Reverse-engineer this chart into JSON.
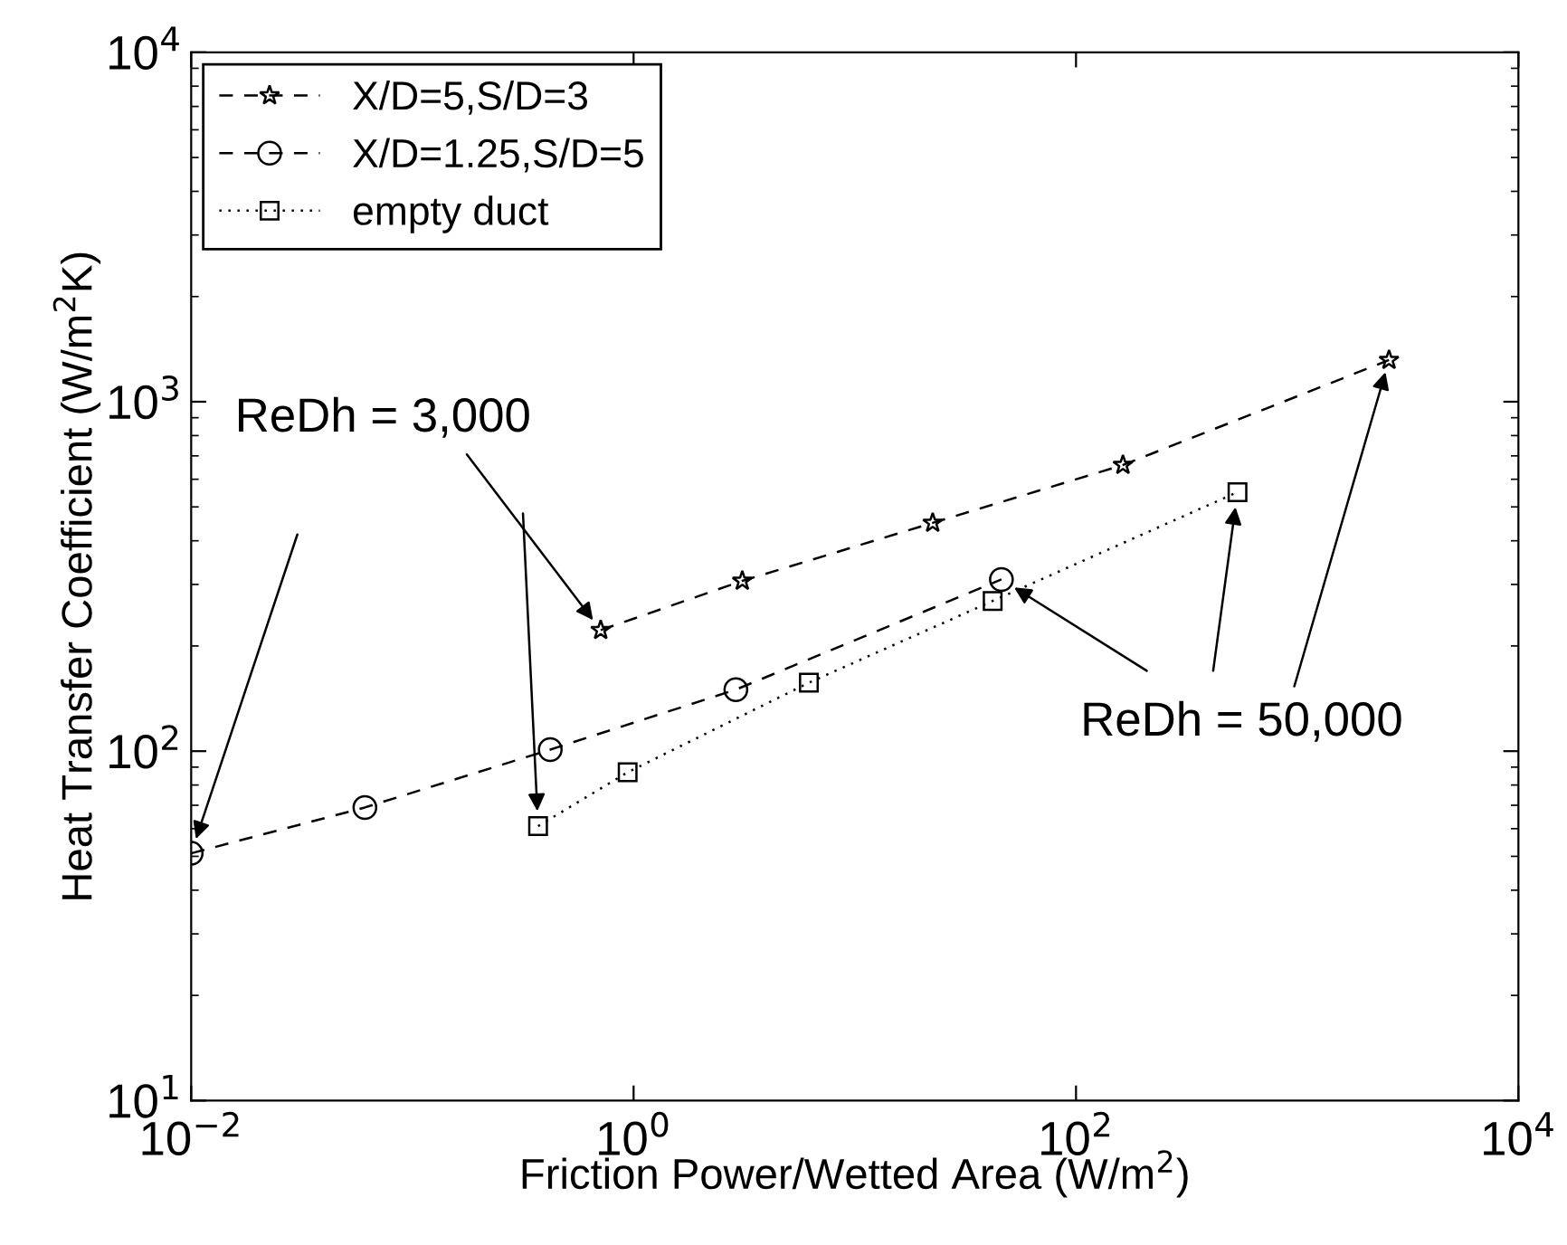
{
  "chart_data": {
    "type": "line",
    "xlabel": "Friction Power/Wetted Area (W/m$^{2}$)",
    "ylabel": "Heat Transfer Coefficient (W/m$^{2}$K)",
    "log": "xy",
    "grid": false,
    "legend": "top left",
    "xlim": [
      0.01,
      10000
    ],
    "ylim": [
      10,
      10000
    ],
    "xticks": [
      {
        "value": 0.01,
        "label": "10$^{−2}$"
      },
      {
        "value": 1,
        "label": "10$^{0}$"
      },
      {
        "value": 100,
        "label": "10$^{2}$"
      },
      {
        "value": 10000,
        "label": "10$^{4}$"
      }
    ],
    "yticks": [
      {
        "value": 10,
        "label": "10$^{1}$"
      },
      {
        "value": 100,
        "label": "10$^{2}$"
      },
      {
        "value": 1000,
        "label": "10$^{3}$"
      },
      {
        "value": 10000,
        "label": "10$^{4}$"
      }
    ],
    "series": [
      {
        "name": "X/D=5,S/D=3",
        "color": "#000000",
        "marker": "star",
        "line_style": "dashed",
        "x": [
          0.71,
          3.1,
          22.5,
          163,
          2600
        ],
        "values": [
          222,
          307,
          450,
          659,
          1316
        ]
      },
      {
        "name": "X/D=1.25,S/D=5",
        "color": "#000000",
        "marker": "circle",
        "line_style": "dashed",
        "x": [
          0.01,
          0.061,
          0.42,
          2.9,
          46
        ],
        "values": [
          51,
          69,
          101,
          150,
          310
        ]
      },
      {
        "name": "empty duct",
        "color": "#000000",
        "marker": "square",
        "line_style": "dotted",
        "x": [
          0.37,
          0.94,
          6.2,
          42,
          537
        ],
        "values": [
          61,
          87,
          157,
          269,
          551
        ]
      }
    ],
    "annotations": [
      {
        "text": "ReDh = 3,000",
        "x": 0.71,
        "y": 222
      },
      {
        "text": "ReDh = 50,000",
        "x": 2600,
        "y": 1316
      }
    ]
  }
}
